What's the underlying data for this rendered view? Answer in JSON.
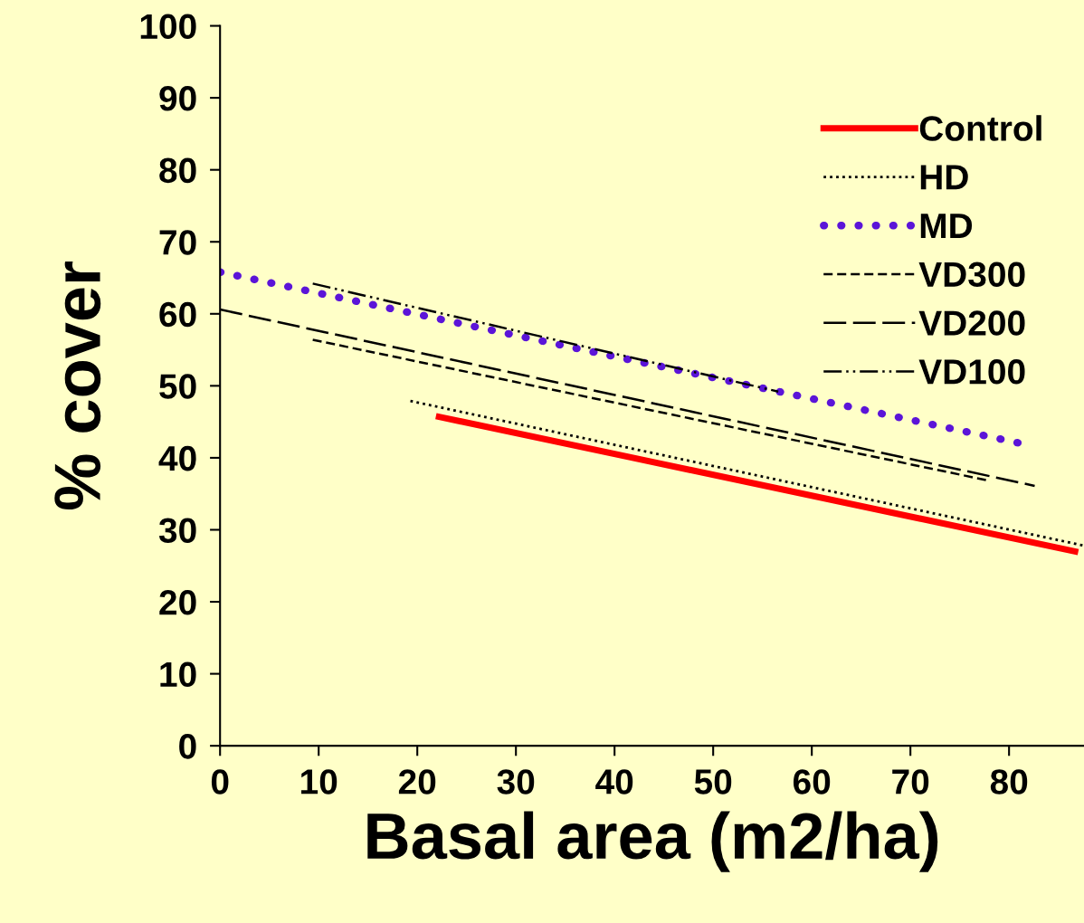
{
  "chart_data": {
    "type": "line",
    "xlabel": "Basal area (m2/ha)",
    "ylabel": "% cover",
    "xlim": [
      0,
      87.6
    ],
    "xticks": [
      0,
      10,
      20,
      30,
      40,
      50,
      60,
      70,
      80
    ],
    "ylim": [
      0,
      100
    ],
    "yticks": [
      0,
      10,
      20,
      30,
      40,
      50,
      60,
      70,
      80,
      90,
      100
    ],
    "grid": false,
    "legend": "top right",
    "marker": "none",
    "series": [
      {
        "name": "Control",
        "color": "#ff0000",
        "line_style": "solid",
        "x": [
          22.2,
          86.7
        ],
        "values": [
          45.7,
          27.0
        ]
      },
      {
        "name": "HD",
        "color": "#000000",
        "line_style": "dotted",
        "x": [
          19.3,
          87.6
        ],
        "values": [
          47.9,
          27.8
        ]
      },
      {
        "name": "MD",
        "color": "#5b14d8",
        "line_style": "dotted",
        "x": [
          0,
          81.2
        ],
        "values": [
          65.8,
          42.0
        ]
      },
      {
        "name": "VD300",
        "color": "#000000",
        "line_style": "dashed",
        "x": [
          9.4,
          77.7
        ],
        "values": [
          56.4,
          36.9
        ]
      },
      {
        "name": "VD200",
        "color": "#000000",
        "line_style": "longdash",
        "x": [
          0,
          82.6
        ],
        "values": [
          60.6,
          36.1
        ]
      },
      {
        "name": "VD100",
        "color": "#000000",
        "line_style": "dashdot",
        "x": [
          9.4,
          56.6
        ],
        "values": [
          64.2,
          49.2
        ]
      }
    ]
  }
}
